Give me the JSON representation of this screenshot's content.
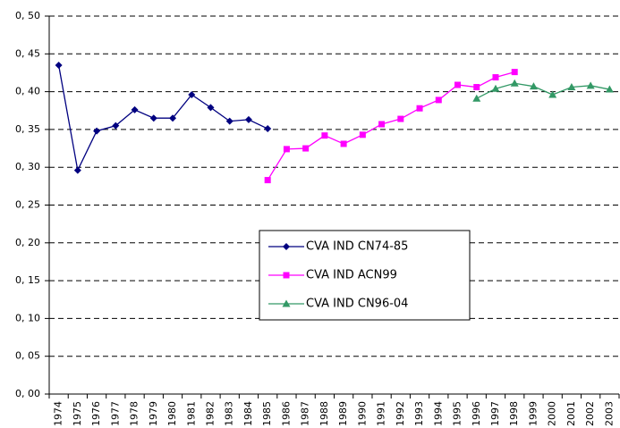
{
  "chart_data": {
    "type": "line",
    "categories": [
      "1974",
      "1975",
      "1976",
      "1977",
      "1978",
      "1979",
      "1980",
      "1981",
      "1982",
      "1983",
      "1984",
      "1985",
      "1986",
      "1987",
      "1988",
      "1989",
      "1990",
      "1991",
      "1992",
      "1993",
      "1994",
      "1995",
      "1996",
      "1997",
      "1998",
      "1999",
      "2000",
      "2001",
      "2002",
      "2003"
    ],
    "series": [
      {
        "name": "CVA IND CN74-85",
        "color": "#000080",
        "marker": "diamond",
        "values": [
          0.435,
          0.296,
          0.348,
          0.355,
          0.376,
          0.365,
          0.365,
          0.396,
          0.379,
          0.361,
          0.363,
          0.351,
          null,
          null,
          null,
          null,
          null,
          null,
          null,
          null,
          null,
          null,
          null,
          null,
          null,
          null,
          null,
          null,
          null,
          null
        ]
      },
      {
        "name": "CVA IND ACN99",
        "color": "#ff00ff",
        "marker": "square",
        "values": [
          null,
          null,
          null,
          null,
          null,
          null,
          null,
          null,
          null,
          null,
          null,
          0.283,
          0.324,
          0.325,
          0.342,
          0.331,
          0.343,
          0.357,
          0.364,
          0.378,
          0.389,
          0.409,
          0.406,
          0.419,
          0.426,
          null,
          null,
          null,
          null,
          null
        ]
      },
      {
        "name": "CVA IND CN96-04",
        "color": "#339966",
        "marker": "triangle",
        "values": [
          null,
          null,
          null,
          null,
          null,
          null,
          null,
          null,
          null,
          null,
          null,
          null,
          null,
          null,
          null,
          null,
          null,
          null,
          null,
          null,
          null,
          null,
          0.391,
          0.404,
          0.411,
          0.407,
          0.396,
          0.406,
          0.408,
          0.403
        ]
      }
    ],
    "ylim": [
      0,
      0.5
    ],
    "yticks": [
      {
        "value": 0,
        "label": "0, 00"
      },
      {
        "value": 0.05,
        "label": "0, 05"
      },
      {
        "value": 0.1,
        "label": "0, 10"
      },
      {
        "value": 0.15,
        "label": "0, 15"
      },
      {
        "value": 0.2,
        "label": "0, 20"
      },
      {
        "value": 0.25,
        "label": "0, 25"
      },
      {
        "value": 0.3,
        "label": "0, 30"
      },
      {
        "value": 0.35,
        "label": "0, 35"
      },
      {
        "value": 0.4,
        "label": "0, 40"
      },
      {
        "value": 0.45,
        "label": "0, 45"
      },
      {
        "value": 0.5,
        "label": "0, 50"
      }
    ],
    "grid": true
  }
}
